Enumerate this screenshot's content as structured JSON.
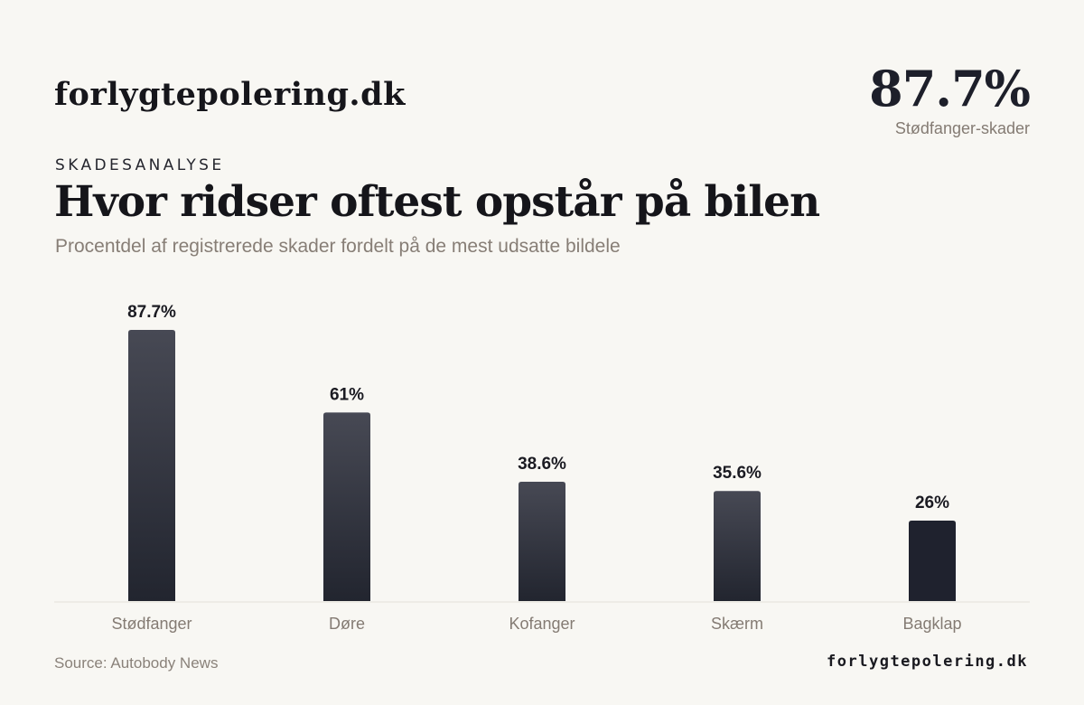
{
  "header": {
    "brand": "forlygtepolering.dk",
    "kpi_value": "87.7%",
    "kpi_label": "Stødfanger-skader"
  },
  "eyebrow": "SKADESANALYSE",
  "footer": {
    "source": "Source: Autobody News",
    "brand": "forlygtepolering.dk"
  },
  "chart_data": {
    "type": "bar",
    "title": "Hvor ridser oftest opstår på bilen",
    "subtitle": "Procentdel af registrerede skader fordelt på de mest udsatte bildele",
    "categories": [
      "Stødfanger",
      "Døre",
      "Kofanger",
      "Skærm",
      "Bagklap"
    ],
    "values": [
      87.7,
      61,
      38.6,
      35.6,
      26
    ],
    "value_labels": [
      "87.7%",
      "61%",
      "38.6%",
      "35.6%",
      "26%"
    ],
    "ylim": [
      0,
      87.7
    ],
    "grid": false,
    "legend": "none",
    "colors": {
      "bar_top": "#474954",
      "bar_bottom": "#22252f",
      "bar_last": "#1f222e",
      "axis": "#e3e0da",
      "value_label": "#1b1b22",
      "category_label": "#847b73"
    }
  }
}
